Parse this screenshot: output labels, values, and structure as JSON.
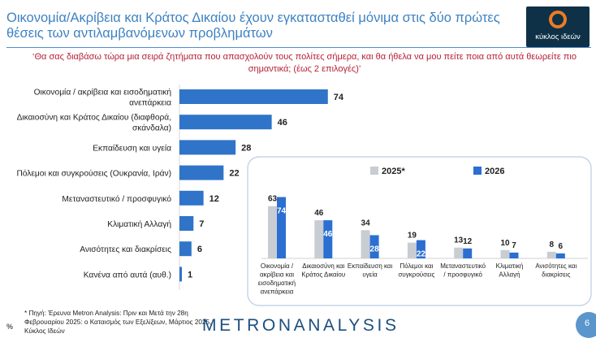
{
  "header": {
    "title": "Οικονομία/Ακρίβεια και Κράτος Δικαίου έχουν εγκατασταθεί μόνιμα στις δύο πρώτες θέσεις των αντιλαμβανόμενων προβλημάτων",
    "logo_text": "κύκλος ιδεών"
  },
  "question": "‘Θα σας διαβάσω τώρα μια σειρά ζητήματα που απασχολούν τους πολίτες σήμερα, και θα ήθελα να μου πείτε ποια από αυτά θεωρείτε πιο σημαντικά; (έως 2 επιλογές)’",
  "colors": {
    "bar_main": "#2f74c8",
    "bar_2025": "#c8cdd3",
    "bar_2026": "#2b6fd0",
    "title": "#3d82c1",
    "question": "#b51f35"
  },
  "chart_data": [
    {
      "type": "bar",
      "orientation": "horizontal",
      "categories": [
        "Οικονομία / ακρίβεια και εισοδηματική ανεπάρκεια",
        "Δικαιοσύνη και Κράτος Δικαίου (διαφθορά, σκάνδαλα)",
        "Εκπαίδευση και υγεία",
        "Πόλεμοι και συγκρούσεις (Ουκρανία, Ιράν)",
        "Μεταναστευτικό / προσφυγικό",
        "Κλιματική Αλλαγή",
        "Ανισότητες και διακρίσεις",
        "Κανένα από αυτά (αυθ.)"
      ],
      "values": [
        74,
        46,
        28,
        22,
        12,
        7,
        6,
        1
      ],
      "xlim": [
        0,
        100
      ],
      "grid": false
    },
    {
      "type": "bar",
      "orientation": "vertical",
      "categories": [
        "Οικονομία / ακρίβεια και εισοδηματική ανεπάρκεια",
        "Δικαιοσύνη και Κράτος Δικαίου",
        "Εκπαίδευση και υγεία",
        "Πόλεμοι και συγκρούσεις",
        "Μεταναστευτικό / προσφυγικό",
        "Κλιματική Αλλαγή",
        "Ανισότητες και διακρίσεις"
      ],
      "series": [
        {
          "name": "2025*",
          "values": [
            63,
            46,
            34,
            19,
            13,
            10,
            8
          ]
        },
        {
          "name": "2026",
          "values": [
            74,
            46,
            28,
            22,
            12,
            7,
            6
          ]
        }
      ],
      "ylim": [
        0,
        80
      ],
      "legend": "top",
      "grid": false
    }
  ],
  "footer": {
    "footnote": "* Πηγή: Έρευνα Metron Analysis: Πριν και Μετά την 28η Φεβρουαρίου 2025: ο Καταισμός των Εξελίξεων, Μάρτιος 2025, Κύκλος Ιδεών",
    "brand": "METRONANALYSIS",
    "percent_symbol": "%",
    "page_number": "6"
  }
}
